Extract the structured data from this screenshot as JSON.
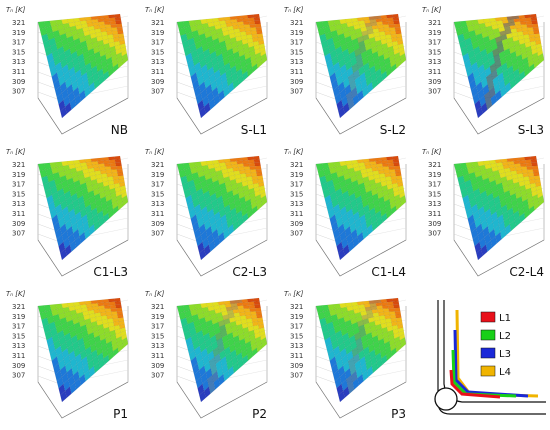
{
  "chart_data": {
    "type": "surface",
    "z_axis_label": "Tₙ [K]",
    "z_ticks": [
      "321",
      "319",
      "317",
      "315",
      "313",
      "311",
      "309",
      "307"
    ],
    "colormap": [
      "#2a3dbf",
      "#1e78d8",
      "#1fb6cf",
      "#22c98a",
      "#3fd34a",
      "#8ddc2a",
      "#e0de1e",
      "#f2b418",
      "#ec7a12",
      "#d84b0d"
    ],
    "panels": [
      {
        "label": "NB",
        "shading_band": 0
      },
      {
        "label": "S-L1",
        "shading_band": 0
      },
      {
        "label": "S-L2",
        "shading_band": 1
      },
      {
        "label": "S-L3",
        "shading_band": 2
      },
      {
        "label": "C1-L3",
        "shading_band": 0
      },
      {
        "label": "C2-L3",
        "shading_band": 0
      },
      {
        "label": "C1-L4",
        "shading_band": 0
      },
      {
        "label": "C2-L4",
        "shading_band": 0
      },
      {
        "label": "P1",
        "shading_band": 0
      },
      {
        "label": "P2",
        "shading_band": 1
      },
      {
        "label": "P3",
        "shading_band": 1
      }
    ]
  },
  "legend": {
    "items": [
      {
        "label": "L1",
        "color": "#e8101a"
      },
      {
        "label": "L2",
        "color": "#18d018"
      },
      {
        "label": "L3",
        "color": "#1a28d8"
      },
      {
        "label": "L4",
        "color": "#f0b400"
      }
    ]
  }
}
